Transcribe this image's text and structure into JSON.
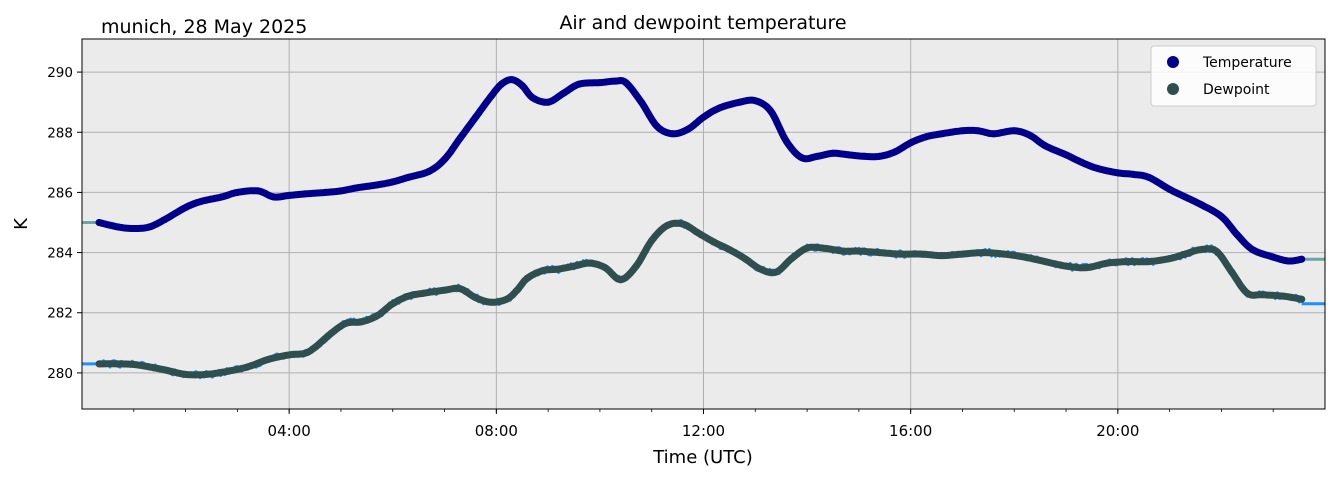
{
  "chart_data": {
    "type": "line",
    "title": "Air and dewpoint temperature",
    "subtitle": "munich, 28 May 2025",
    "xlabel": "Time (UTC)",
    "ylabel": "K",
    "xlim": [
      0,
      24
    ],
    "ylim": [
      278.8,
      291.1
    ],
    "xticks": [
      4,
      8,
      12,
      16,
      20
    ],
    "xtick_labels": [
      "04:00",
      "08:00",
      "12:00",
      "16:00",
      "20:00"
    ],
    "yticks": [
      280,
      282,
      284,
      286,
      288,
      290
    ],
    "ytick_labels": [
      "280",
      "282",
      "284",
      "286",
      "288",
      "290"
    ],
    "grid": true,
    "legend_position": "top-right",
    "series": [
      {
        "name": "Temperature",
        "color": "#00008b",
        "raw_color": "#6aa6a6",
        "x": [
          0.33,
          0.7,
          1.0,
          1.3,
          1.6,
          2.0,
          2.3,
          2.7,
          3.0,
          3.4,
          3.7,
          4.0,
          4.3,
          4.7,
          5.0,
          5.3,
          5.7,
          6.0,
          6.3,
          6.7,
          7.0,
          7.3,
          7.6,
          7.9,
          8.1,
          8.3,
          8.5,
          8.7,
          9.0,
          9.3,
          9.6,
          10.0,
          10.3,
          10.5,
          10.8,
          11.1,
          11.4,
          11.7,
          12.0,
          12.3,
          12.7,
          13.0,
          13.3,
          13.6,
          13.9,
          14.2,
          14.5,
          14.8,
          15.1,
          15.4,
          15.7,
          16.0,
          16.3,
          16.6,
          17.0,
          17.3,
          17.6,
          18.0,
          18.3,
          18.6,
          19.0,
          19.3,
          19.6,
          20.0,
          20.3,
          20.6,
          21.0,
          21.3,
          21.6,
          22.0,
          22.3,
          22.6,
          23.0,
          23.3,
          23.55
        ],
        "y": [
          285.0,
          284.85,
          284.8,
          284.85,
          285.1,
          285.5,
          285.7,
          285.85,
          286.0,
          286.05,
          285.85,
          285.9,
          285.95,
          286.0,
          286.05,
          286.15,
          286.25,
          286.35,
          286.5,
          286.7,
          287.1,
          287.8,
          288.5,
          289.2,
          289.6,
          289.75,
          289.55,
          289.15,
          289.0,
          289.3,
          289.6,
          289.65,
          289.7,
          289.65,
          289.0,
          288.2,
          287.95,
          288.1,
          288.5,
          288.8,
          289.0,
          289.05,
          288.7,
          287.7,
          287.15,
          287.2,
          287.3,
          287.25,
          287.2,
          287.2,
          287.35,
          287.65,
          287.85,
          287.95,
          288.05,
          288.05,
          287.95,
          288.05,
          287.9,
          287.55,
          287.25,
          287.0,
          286.8,
          286.65,
          286.6,
          286.5,
          286.1,
          285.85,
          285.6,
          285.2,
          284.6,
          284.1,
          283.85,
          283.72,
          283.78
        ]
      },
      {
        "name": "Dewpoint",
        "color": "#2f4f4f",
        "raw_color": "#1e90ff",
        "x": [
          0.33,
          0.7,
          1.0,
          1.3,
          1.6,
          2.0,
          2.4,
          2.8,
          3.2,
          3.6,
          4.0,
          4.3,
          4.5,
          4.8,
          5.1,
          5.4,
          5.7,
          6.0,
          6.3,
          6.6,
          7.0,
          7.3,
          7.6,
          7.9,
          8.2,
          8.4,
          8.6,
          8.9,
          9.2,
          9.5,
          9.8,
          10.1,
          10.4,
          10.7,
          11.0,
          11.3,
          11.6,
          11.9,
          12.2,
          12.5,
          12.8,
          13.1,
          13.4,
          13.7,
          14.0,
          14.3,
          14.7,
          15.0,
          15.4,
          15.8,
          16.2,
          16.6,
          17.0,
          17.4,
          17.8,
          18.2,
          18.6,
          19.0,
          19.4,
          19.8,
          20.2,
          20.6,
          21.0,
          21.3,
          21.6,
          21.9,
          22.2,
          22.5,
          22.8,
          23.2,
          23.55
        ],
        "y": [
          280.3,
          280.3,
          280.28,
          280.2,
          280.1,
          279.95,
          279.95,
          280.05,
          280.2,
          280.45,
          280.6,
          280.65,
          280.85,
          281.3,
          281.65,
          281.7,
          281.9,
          282.3,
          282.55,
          282.65,
          282.75,
          282.8,
          282.5,
          282.35,
          282.45,
          282.75,
          283.15,
          283.4,
          283.45,
          283.55,
          283.65,
          283.5,
          283.1,
          283.55,
          284.4,
          284.9,
          284.95,
          284.65,
          284.35,
          284.1,
          283.8,
          283.45,
          283.35,
          283.8,
          284.15,
          284.15,
          284.05,
          284.05,
          284.0,
          283.95,
          283.95,
          283.9,
          283.95,
          284.0,
          283.95,
          283.85,
          283.7,
          283.55,
          283.5,
          283.65,
          283.7,
          283.7,
          283.8,
          283.95,
          284.1,
          284.05,
          283.35,
          282.65,
          282.6,
          282.55,
          282.45
        ]
      }
    ]
  }
}
